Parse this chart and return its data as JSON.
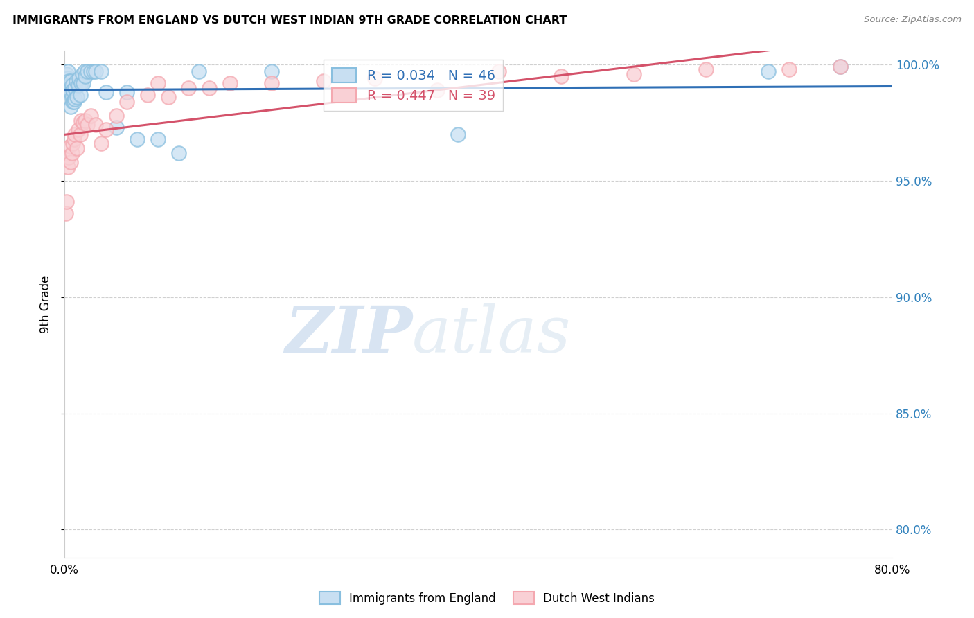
{
  "title": "IMMIGRANTS FROM ENGLAND VS DUTCH WEST INDIAN 9TH GRADE CORRELATION CHART",
  "source": "Source: ZipAtlas.com",
  "ylabel": "9th Grade",
  "xlim": [
    0.0,
    0.8
  ],
  "ylim": [
    0.788,
    1.006
  ],
  "yticks": [
    0.8,
    0.85,
    0.9,
    0.95,
    1.0
  ],
  "ytick_labels": [
    "80.0%",
    "85.0%",
    "90.0%",
    "95.0%",
    "100.0%"
  ],
  "xticks": [
    0.0,
    0.1,
    0.2,
    0.3,
    0.4,
    0.5,
    0.6,
    0.7,
    0.8
  ],
  "xtick_labels": [
    "0.0%",
    "",
    "",
    "",
    "",
    "",
    "",
    "",
    "80.0%"
  ],
  "england_color": "#89bfdf",
  "dutch_color": "#f4a8b0",
  "england_line_color": "#2f6fb5",
  "dutch_line_color": "#d4526a",
  "england_R": 0.034,
  "england_N": 46,
  "dutch_R": 0.447,
  "dutch_N": 39,
  "england_x": [
    0.001,
    0.002,
    0.002,
    0.003,
    0.003,
    0.003,
    0.004,
    0.004,
    0.005,
    0.005,
    0.006,
    0.006,
    0.006,
    0.007,
    0.007,
    0.008,
    0.008,
    0.009,
    0.01,
    0.01,
    0.011,
    0.012,
    0.013,
    0.014,
    0.015,
    0.016,
    0.017,
    0.018,
    0.019,
    0.02,
    0.022,
    0.025,
    0.028,
    0.03,
    0.035,
    0.04,
    0.05,
    0.06,
    0.07,
    0.09,
    0.11,
    0.13,
    0.2,
    0.38,
    0.68,
    0.75
  ],
  "england_y": [
    0.99,
    0.992,
    0.996,
    0.99,
    0.994,
    0.997,
    0.989,
    0.993,
    0.985,
    0.991,
    0.982,
    0.988,
    0.993,
    0.986,
    0.991,
    0.984,
    0.989,
    0.984,
    0.985,
    0.99,
    0.993,
    0.986,
    0.991,
    0.994,
    0.987,
    0.992,
    0.996,
    0.992,
    0.997,
    0.995,
    0.997,
    0.997,
    0.997,
    0.997,
    0.997,
    0.988,
    0.973,
    0.988,
    0.968,
    0.968,
    0.962,
    0.997,
    0.997,
    0.97,
    0.997,
    0.999
  ],
  "dutch_x": [
    0.001,
    0.002,
    0.003,
    0.004,
    0.005,
    0.006,
    0.007,
    0.008,
    0.009,
    0.01,
    0.012,
    0.013,
    0.015,
    0.016,
    0.018,
    0.02,
    0.022,
    0.025,
    0.03,
    0.035,
    0.04,
    0.05,
    0.06,
    0.08,
    0.09,
    0.1,
    0.12,
    0.14,
    0.16,
    0.2,
    0.25,
    0.3,
    0.36,
    0.42,
    0.48,
    0.55,
    0.62,
    0.7,
    0.75
  ],
  "dutch_y": [
    0.936,
    0.941,
    0.956,
    0.96,
    0.965,
    0.958,
    0.962,
    0.966,
    0.968,
    0.97,
    0.964,
    0.972,
    0.97,
    0.976,
    0.975,
    0.976,
    0.974,
    0.978,
    0.974,
    0.966,
    0.972,
    0.978,
    0.984,
    0.987,
    0.992,
    0.986,
    0.99,
    0.99,
    0.992,
    0.992,
    0.993,
    0.994,
    0.989,
    0.997,
    0.995,
    0.996,
    0.998,
    0.998,
    0.999
  ],
  "watermark_zip": "ZIP",
  "watermark_atlas": "atlas",
  "background_color": "#ffffff",
  "grid_color": "#d0d0d0"
}
